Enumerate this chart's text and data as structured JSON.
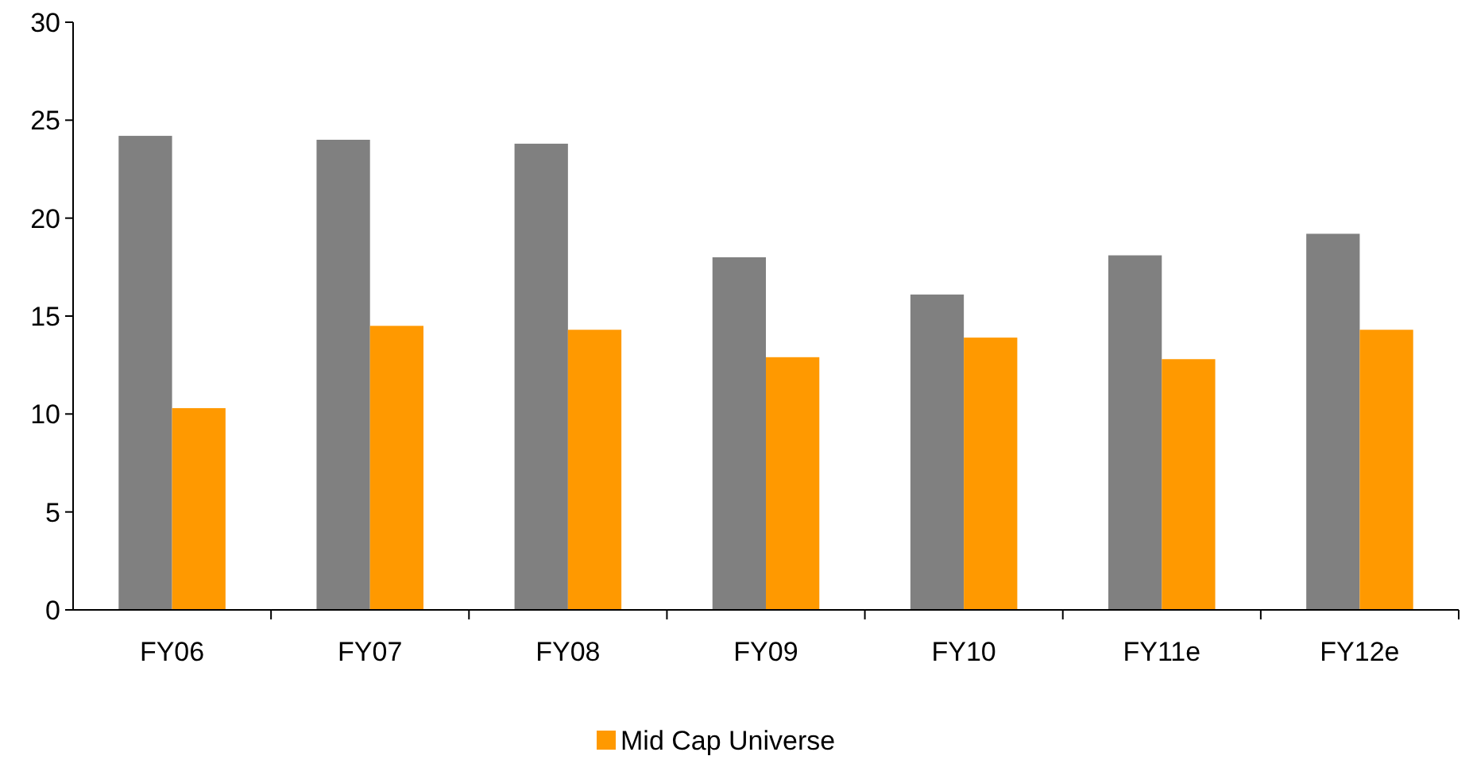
{
  "chart_data": {
    "type": "bar",
    "categories": [
      "FY06",
      "FY07",
      "FY08",
      "FY09",
      "FY10",
      "FY11e",
      "FY12e"
    ],
    "series": [
      {
        "color": "#808080",
        "values": [
          24.2,
          24.0,
          23.8,
          18.0,
          16.1,
          18.1,
          19.2
        ]
      },
      {
        "name": "Mid Cap Universe",
        "color": "#ff9900",
        "values": [
          10.3,
          14.5,
          14.3,
          12.9,
          13.9,
          12.8,
          14.3
        ]
      }
    ],
    "ylim": [
      0,
      30
    ],
    "yticks": [
      0,
      5,
      10,
      15,
      20,
      25,
      30
    ],
    "grid": false,
    "legend": "bottom"
  }
}
